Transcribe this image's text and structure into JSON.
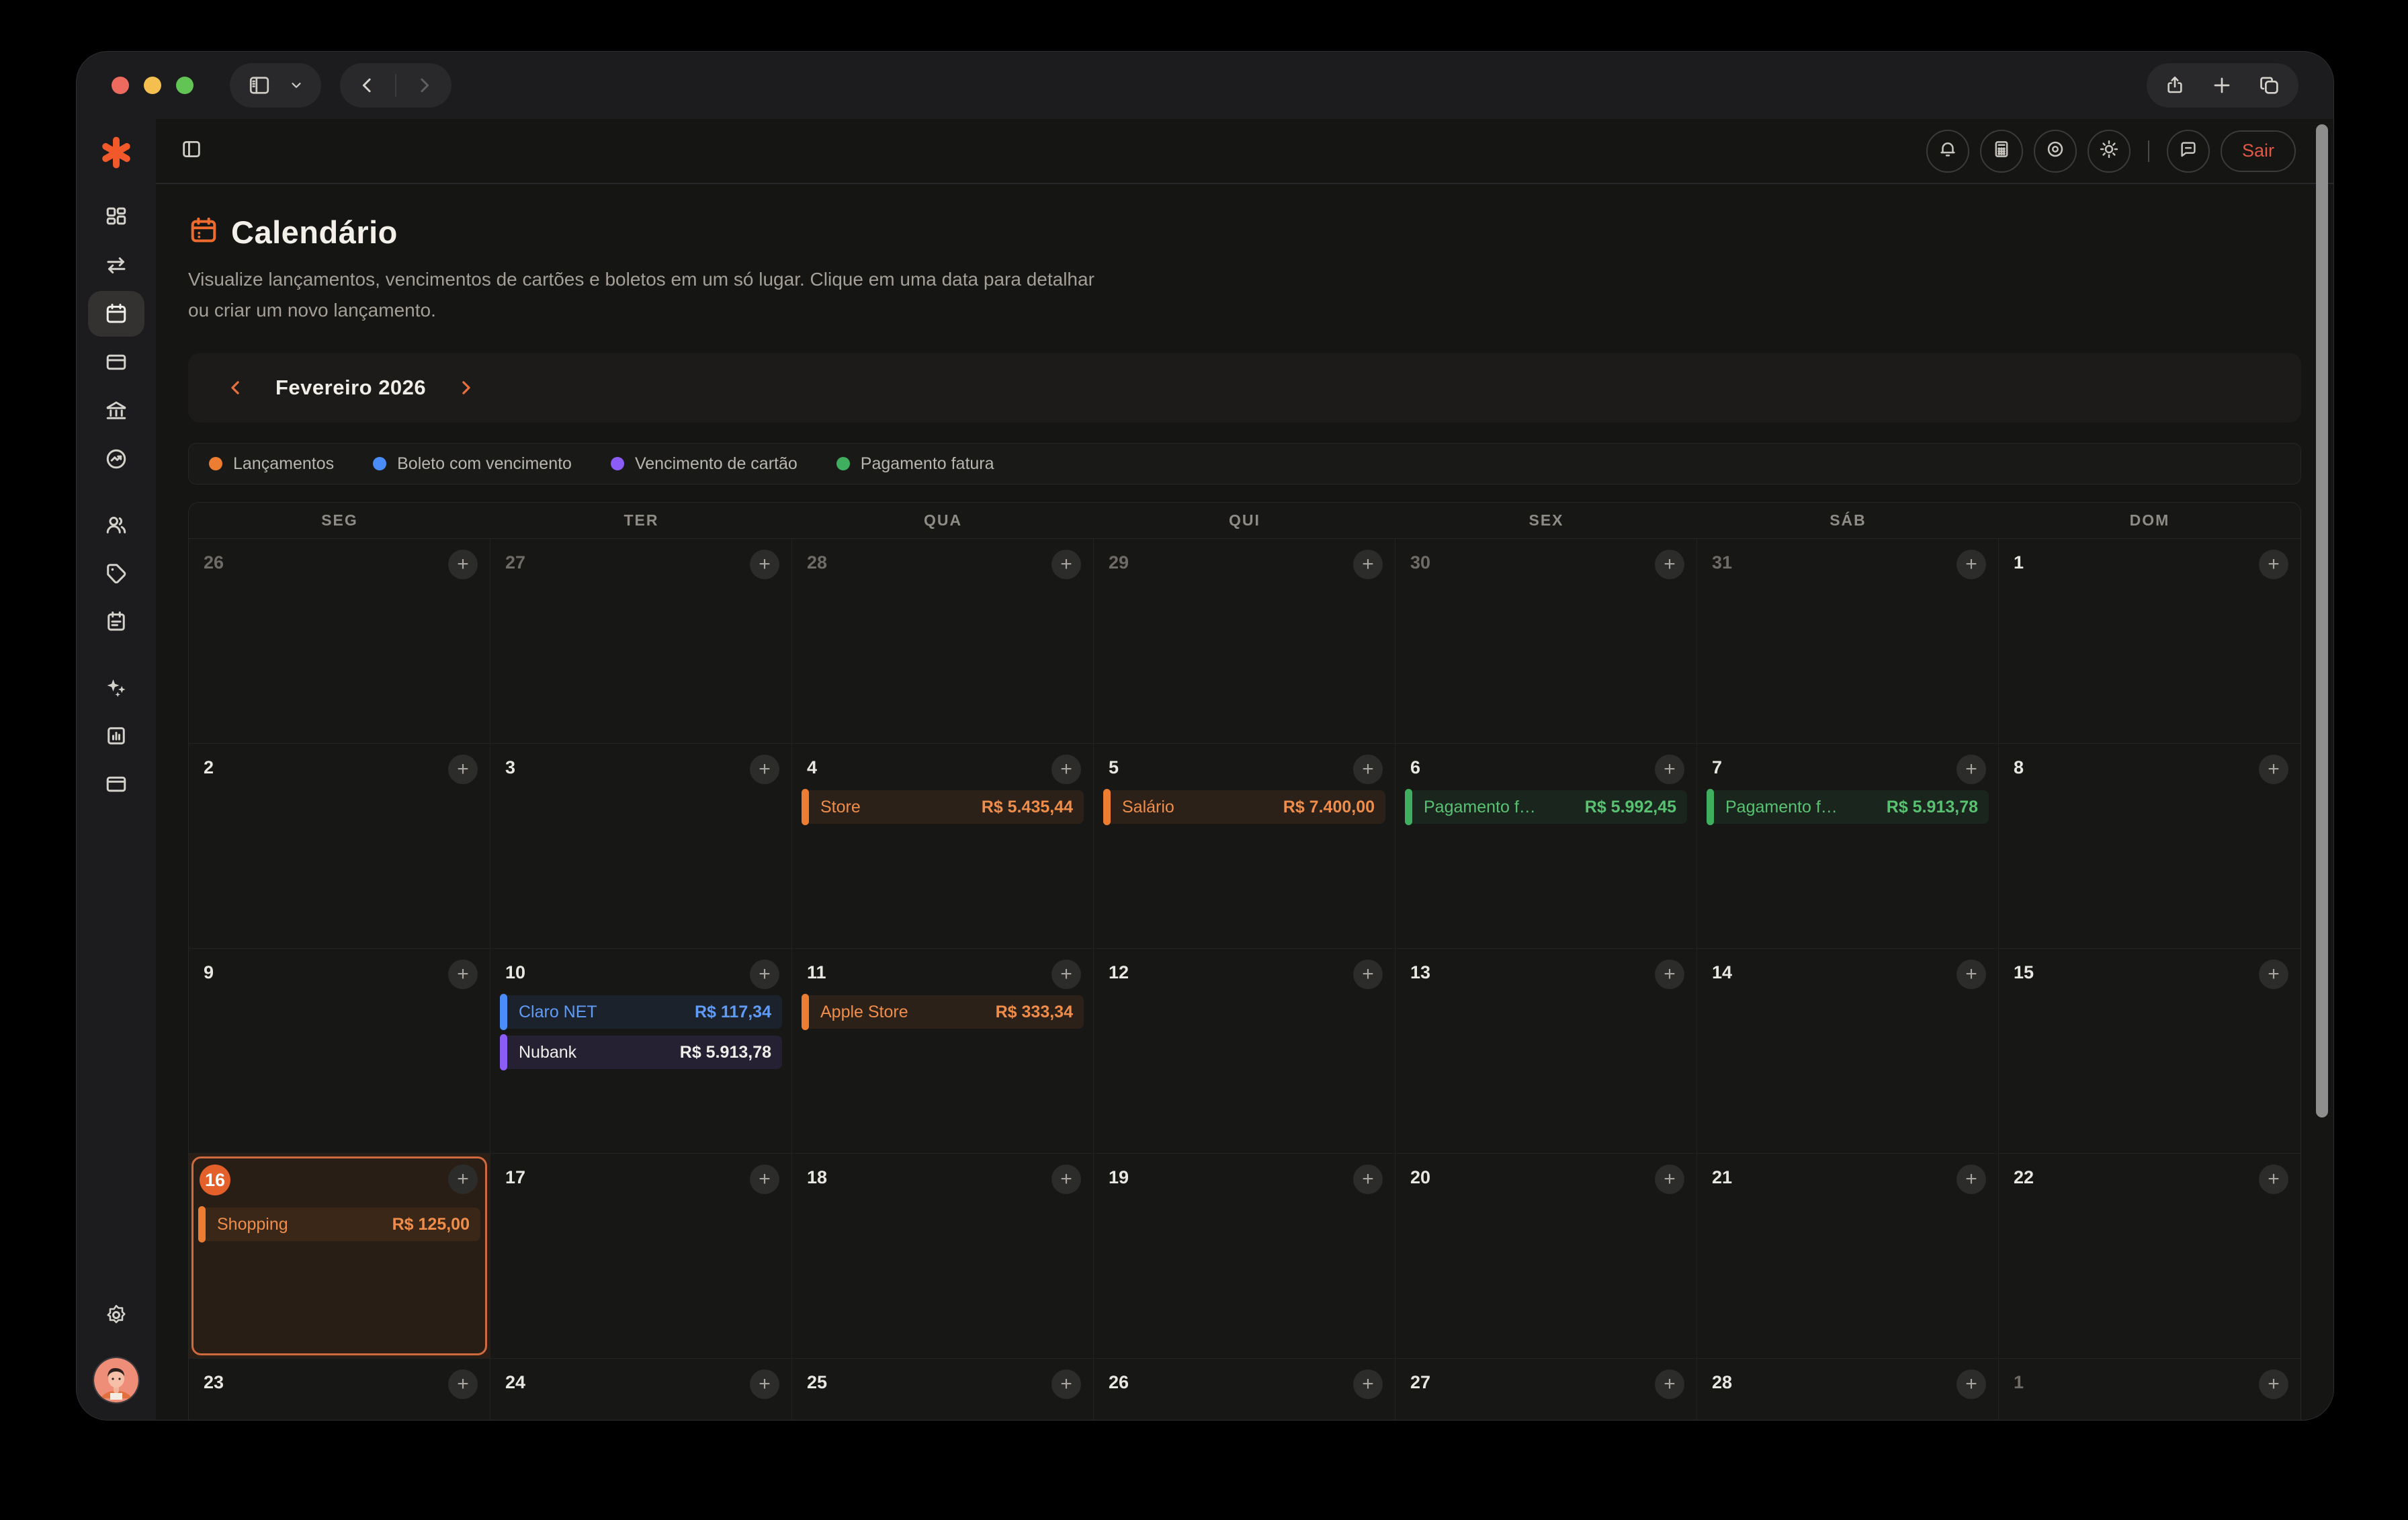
{
  "browser": {
    "window_controls": [
      "close",
      "minimize",
      "maximize"
    ],
    "toolbar_icons": [
      "sidebar-toggle-icon",
      "chevron-down-icon",
      "back-icon",
      "forward-icon",
      "share-icon",
      "new-tab-icon",
      "tabs-icon"
    ]
  },
  "header": {
    "icons": [
      "panel-toggle-icon",
      "bell-icon",
      "calculator-icon",
      "eye-icon",
      "sun-icon",
      "chat-icon"
    ],
    "sair_label": "Sair"
  },
  "page": {
    "title": "Calendário",
    "subtitle": "Visualize lançamentos, vencimentos de cartões e boletos em um só lugar. Clique em uma data para detalhar ou criar um novo lançamento."
  },
  "sidebar": {
    "icons": [
      "logo-asterisk",
      "dashboard",
      "transfers",
      "calendar",
      "cards",
      "bank",
      "investments",
      "users",
      "tags",
      "clipboard",
      "ai-sparkles",
      "reports",
      "accounts",
      "settings",
      "avatar"
    ],
    "active": "calendar"
  },
  "month_nav": {
    "label": "Fevereiro 2026"
  },
  "legend": [
    {
      "label": "Lançamentos",
      "color": "#ed7d31",
      "type": "lancamento"
    },
    {
      "label": "Boleto com vencimento",
      "color": "#4b8df8",
      "type": "boleto"
    },
    {
      "label": "Vencimento de cartão",
      "color": "#8b5cf6",
      "type": "cartao"
    },
    {
      "label": "Pagamento fatura",
      "color": "#3fae5e",
      "type": "fatura"
    }
  ],
  "calendar": {
    "weekday_headers": [
      "SEG",
      "TER",
      "QUA",
      "QUI",
      "SEX",
      "SÁB",
      "DOM"
    ],
    "add_button_glyph": "+",
    "weeks": [
      [
        {
          "day": "26",
          "muted": true
        },
        {
          "day": "27",
          "muted": true
        },
        {
          "day": "28",
          "muted": true
        },
        {
          "day": "29",
          "muted": true
        },
        {
          "day": "30",
          "muted": true
        },
        {
          "day": "31",
          "muted": true
        },
        {
          "day": "1"
        }
      ],
      [
        {
          "day": "2"
        },
        {
          "day": "3"
        },
        {
          "day": "4",
          "events": [
            {
              "name": "Store",
              "value": "R$ 5.435,44",
              "type": "lancamento"
            }
          ]
        },
        {
          "day": "5",
          "events": [
            {
              "name": "Salário",
              "value": "R$ 7.400,00",
              "type": "lancamento"
            }
          ]
        },
        {
          "day": "6",
          "events": [
            {
              "name": "Pagamento fatura",
              "value": "R$ 5.992,45",
              "type": "fatura"
            }
          ]
        },
        {
          "day": "7",
          "events": [
            {
              "name": "Pagamento fatura",
              "value": "R$ 5.913,78",
              "type": "fatura"
            }
          ]
        },
        {
          "day": "8"
        }
      ],
      [
        {
          "day": "9"
        },
        {
          "day": "10",
          "events": [
            {
              "name": "Claro NET",
              "value": "R$ 117,34",
              "type": "boleto"
            },
            {
              "name": "Nubank",
              "value": "R$ 5.913,78",
              "type": "cartao"
            }
          ]
        },
        {
          "day": "11",
          "events": [
            {
              "name": "Apple Store",
              "value": "R$ 333,34",
              "type": "lancamento"
            }
          ]
        },
        {
          "day": "12"
        },
        {
          "day": "13"
        },
        {
          "day": "14"
        },
        {
          "day": "15"
        }
      ],
      [
        {
          "day": "16",
          "today": true,
          "events": [
            {
              "name": "Shopping",
              "value": "R$ 125,00",
              "type": "lancamento"
            }
          ]
        },
        {
          "day": "17"
        },
        {
          "day": "18"
        },
        {
          "day": "19"
        },
        {
          "day": "20"
        },
        {
          "day": "21"
        },
        {
          "day": "22"
        }
      ],
      [
        {
          "day": "23"
        },
        {
          "day": "24"
        },
        {
          "day": "25"
        },
        {
          "day": "26"
        },
        {
          "day": "27"
        },
        {
          "day": "28"
        },
        {
          "day": "1",
          "muted": true
        }
      ]
    ]
  },
  "colors": {
    "accent_orange": "#ed6b2f",
    "today_ring": "#cf6a3f",
    "today_badge": "#e4602a",
    "sair_text": "#e25844",
    "traffic_lights": [
      "#ec6a5e",
      "#f4bf4f",
      "#61c454"
    ]
  }
}
